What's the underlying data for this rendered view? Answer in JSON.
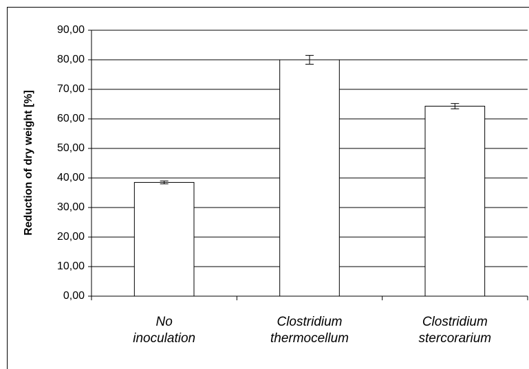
{
  "chart_data": {
    "type": "bar",
    "y_label": "Reduction of dry weight [%]",
    "categories": [
      [
        "No",
        "inoculation"
      ],
      [
        "Clostridium",
        "thermocellum"
      ],
      [
        "Clostridium",
        "stercorarium"
      ]
    ],
    "values": [
      38.5,
      80.0,
      64.3
    ],
    "errors": [
      0.5,
      1.5,
      0.9
    ],
    "color": "#ffffff",
    "ylim": [
      0,
      90
    ],
    "yticks": [
      {
        "value": 0,
        "label": "0,00"
      },
      {
        "value": 10,
        "label": "10,00"
      },
      {
        "value": 20,
        "label": "20,00"
      },
      {
        "value": 30,
        "label": "30,00"
      },
      {
        "value": 40,
        "label": "40,00"
      },
      {
        "value": 50,
        "label": "50,00"
      },
      {
        "value": 60,
        "label": "60,00"
      },
      {
        "value": 70,
        "label": "70,00"
      },
      {
        "value": 80,
        "label": "80,00"
      },
      {
        "value": 90,
        "label": "90,00"
      }
    ],
    "grid": true
  }
}
